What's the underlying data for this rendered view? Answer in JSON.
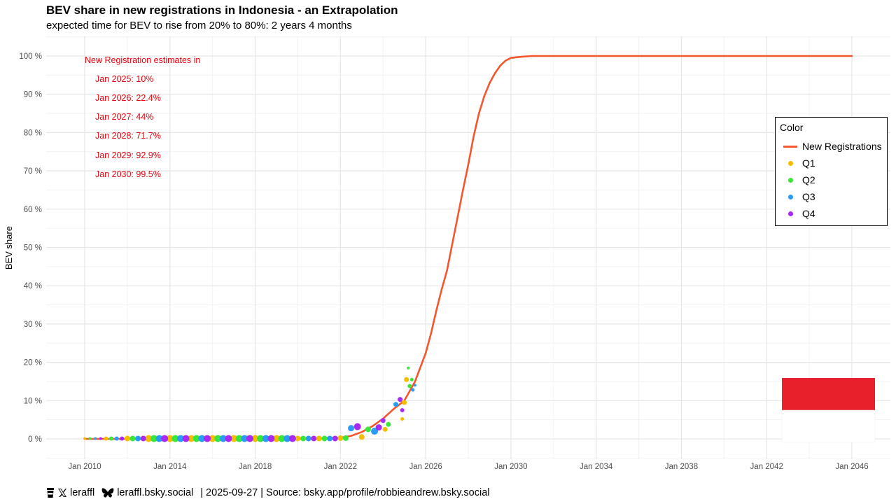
{
  "title": "BEV share in new registrations in Indonesia - an Extrapolation",
  "subtitle": "expected time for BEV to rise from 20% to 80%: 2 years 4 months",
  "annotation": {
    "heading": "New Registration estimates in",
    "lines": [
      "Jan 2025: 10%",
      "Jan 2026: 22.4%",
      "Jan 2027: 44%",
      "Jan 2028: 71.7%",
      "Jan 2029: 92.9%",
      "Jan 2030: 99.5%"
    ],
    "color": "#e8000b"
  },
  "legend": {
    "title": "Color",
    "items": [
      {
        "label": "New Registrations",
        "kind": "line",
        "color": "#f4562d"
      },
      {
        "label": "Q1",
        "kind": "dot",
        "color": "#f5bd00"
      },
      {
        "label": "Q2",
        "kind": "dot",
        "color": "#39e639"
      },
      {
        "label": "Q3",
        "kind": "dot",
        "color": "#2b9cf5"
      },
      {
        "label": "Q4",
        "kind": "dot",
        "color": "#a82bf5"
      }
    ]
  },
  "caption": {
    "x_handle": "leraffl",
    "bsky_handle": "leraffl.bsky.social",
    "rest": "| 2025-09-27 | Source: bsky.app/profile/robbieandrew.bsky.social"
  },
  "flag_colors": {
    "top": "#e8202c",
    "bottom": "#ffffff"
  },
  "chart_data": {
    "type": "scatter",
    "ylabel": "BEV share",
    "xlabel": "",
    "x_ticks": [
      "Jan 2010",
      "Jan 2014",
      "Jan 2018",
      "Jan 2022",
      "Jan 2026",
      "Jan 2030",
      "Jan 2034",
      "Jan 2038",
      "Jan 2042",
      "Jan 2046"
    ],
    "y_ticks": [
      "0 %",
      "10 %",
      "20 %",
      "30 %",
      "40 %",
      "50 %",
      "60 %",
      "70 %",
      "80 %",
      "90 %",
      "100 %"
    ],
    "xlim": [
      2010.0,
      2046.0
    ],
    "ylim": [
      0,
      100
    ],
    "grid": true,
    "legend_position": "right",
    "curve": {
      "name": "New Registrations",
      "color": "#f4562d",
      "x": [
        2010.0,
        2020.0,
        2022.0,
        2022.5,
        2023.0,
        2023.5,
        2024.0,
        2024.5,
        2025.0,
        2025.5,
        2026.0,
        2026.25,
        2026.5,
        2026.75,
        2027.0,
        2027.25,
        2027.5,
        2027.75,
        2028.0,
        2028.25,
        2028.5,
        2028.75,
        2029.0,
        2029.25,
        2029.5,
        2029.75,
        2030.0,
        2030.5,
        2031.0,
        2046.0
      ],
      "y": [
        0,
        0,
        0.3,
        0.8,
        1.8,
        3.3,
        5.3,
        7.8,
        10.0,
        15.0,
        22.4,
        27.5,
        33.5,
        39.0,
        44.0,
        51.0,
        58.0,
        65.0,
        71.7,
        79.0,
        85.0,
        89.5,
        92.9,
        95.5,
        97.5,
        98.8,
        99.5,
        99.8,
        100,
        100
      ]
    },
    "series": [
      {
        "name": "Q1",
        "color": "#f5bd00",
        "points": [
          {
            "x": 2010.0,
            "y": 0.1,
            "s": 2
          },
          {
            "x": 2011.0,
            "y": 0.1,
            "s": 3
          },
          {
            "x": 2012.0,
            "y": 0.1,
            "s": 4
          },
          {
            "x": 2013.0,
            "y": 0.1,
            "s": 5
          },
          {
            "x": 2014.0,
            "y": 0.1,
            "s": 5
          },
          {
            "x": 2015.0,
            "y": 0.1,
            "s": 5
          },
          {
            "x": 2016.0,
            "y": 0.1,
            "s": 5
          },
          {
            "x": 2017.0,
            "y": 0.1,
            "s": 5
          },
          {
            "x": 2018.0,
            "y": 0.1,
            "s": 5
          },
          {
            "x": 2019.0,
            "y": 0.1,
            "s": 5
          },
          {
            "x": 2020.0,
            "y": 0.1,
            "s": 4
          },
          {
            "x": 2021.0,
            "y": 0.1,
            "s": 4
          },
          {
            "x": 2022.0,
            "y": 0.2,
            "s": 4
          },
          {
            "x": 2023.0,
            "y": 0.5,
            "s": 4
          },
          {
            "x": 2024.1,
            "y": 2.5,
            "s": 3.5
          },
          {
            "x": 2025.0,
            "y": 9.5,
            "s": 3.5
          },
          {
            "x": 2024.9,
            "y": 5.2,
            "s": 2.5
          },
          {
            "x": 2025.1,
            "y": 15.5,
            "s": 3.5
          }
        ]
      },
      {
        "name": "Q2",
        "color": "#39e639",
        "points": [
          {
            "x": 2010.25,
            "y": 0.1,
            "s": 2
          },
          {
            "x": 2011.25,
            "y": 0.1,
            "s": 3
          },
          {
            "x": 2012.25,
            "y": 0.1,
            "s": 4
          },
          {
            "x": 2013.25,
            "y": 0.1,
            "s": 5
          },
          {
            "x": 2014.25,
            "y": 0.1,
            "s": 5
          },
          {
            "x": 2015.25,
            "y": 0.1,
            "s": 5
          },
          {
            "x": 2016.25,
            "y": 0.1,
            "s": 5
          },
          {
            "x": 2017.25,
            "y": 0.1,
            "s": 5
          },
          {
            "x": 2018.25,
            "y": 0.1,
            "s": 5
          },
          {
            "x": 2019.25,
            "y": 0.1,
            "s": 5
          },
          {
            "x": 2020.25,
            "y": 0.1,
            "s": 4
          },
          {
            "x": 2021.25,
            "y": 0.1,
            "s": 4
          },
          {
            "x": 2022.25,
            "y": 0.2,
            "s": 4
          },
          {
            "x": 2023.3,
            "y": 2.5,
            "s": 4
          },
          {
            "x": 2024.25,
            "y": 3.8,
            "s": 3.5
          },
          {
            "x": 2025.25,
            "y": 13.8,
            "s": 3
          },
          {
            "x": 2025.35,
            "y": 15.5,
            "s": 2.5
          },
          {
            "x": 2025.18,
            "y": 18.5,
            "s": 2
          }
        ]
      },
      {
        "name": "Q3",
        "color": "#2b9cf5",
        "points": [
          {
            "x": 2010.5,
            "y": 0.1,
            "s": 2
          },
          {
            "x": 2011.5,
            "y": 0.1,
            "s": 3
          },
          {
            "x": 2012.5,
            "y": 0.1,
            "s": 4
          },
          {
            "x": 2013.5,
            "y": 0.1,
            "s": 5
          },
          {
            "x": 2014.5,
            "y": 0.1,
            "s": 5
          },
          {
            "x": 2015.5,
            "y": 0.1,
            "s": 5
          },
          {
            "x": 2016.5,
            "y": 0.1,
            "s": 5
          },
          {
            "x": 2017.5,
            "y": 0.1,
            "s": 5
          },
          {
            "x": 2018.5,
            "y": 0.1,
            "s": 5
          },
          {
            "x": 2019.5,
            "y": 0.1,
            "s": 5
          },
          {
            "x": 2020.5,
            "y": 0.1,
            "s": 4
          },
          {
            "x": 2021.5,
            "y": 0.1,
            "s": 4
          },
          {
            "x": 2022.5,
            "y": 2.8,
            "s": 4.5
          },
          {
            "x": 2023.6,
            "y": 2.0,
            "s": 5
          },
          {
            "x": 2024.6,
            "y": 9.0,
            "s": 3.5
          },
          {
            "x": 2025.4,
            "y": 12.8,
            "s": 2.5
          },
          {
            "x": 2025.5,
            "y": 14.0,
            "s": 2
          }
        ]
      },
      {
        "name": "Q4",
        "color": "#a82bf5",
        "points": [
          {
            "x": 2010.75,
            "y": 0.1,
            "s": 2
          },
          {
            "x": 2011.75,
            "y": 0.1,
            "s": 3
          },
          {
            "x": 2012.75,
            "y": 0.1,
            "s": 4
          },
          {
            "x": 2013.75,
            "y": 0.1,
            "s": 5
          },
          {
            "x": 2014.75,
            "y": 0.1,
            "s": 5
          },
          {
            "x": 2015.75,
            "y": 0.1,
            "s": 5
          },
          {
            "x": 2016.75,
            "y": 0.1,
            "s": 5
          },
          {
            "x": 2017.75,
            "y": 0.1,
            "s": 5
          },
          {
            "x": 2018.75,
            "y": 0.1,
            "s": 5
          },
          {
            "x": 2019.75,
            "y": 0.1,
            "s": 5
          },
          {
            "x": 2020.75,
            "y": 0.1,
            "s": 4
          },
          {
            "x": 2021.75,
            "y": 0.1,
            "s": 4
          },
          {
            "x": 2022.8,
            "y": 3.2,
            "s": 5
          },
          {
            "x": 2023.8,
            "y": 3.0,
            "s": 4.5
          },
          {
            "x": 2024.8,
            "y": 10.3,
            "s": 3.5
          },
          {
            "x": 2024.9,
            "y": 7.5,
            "s": 3
          },
          {
            "x": 2024.0,
            "y": 4.8,
            "s": 3.5
          }
        ]
      }
    ]
  }
}
